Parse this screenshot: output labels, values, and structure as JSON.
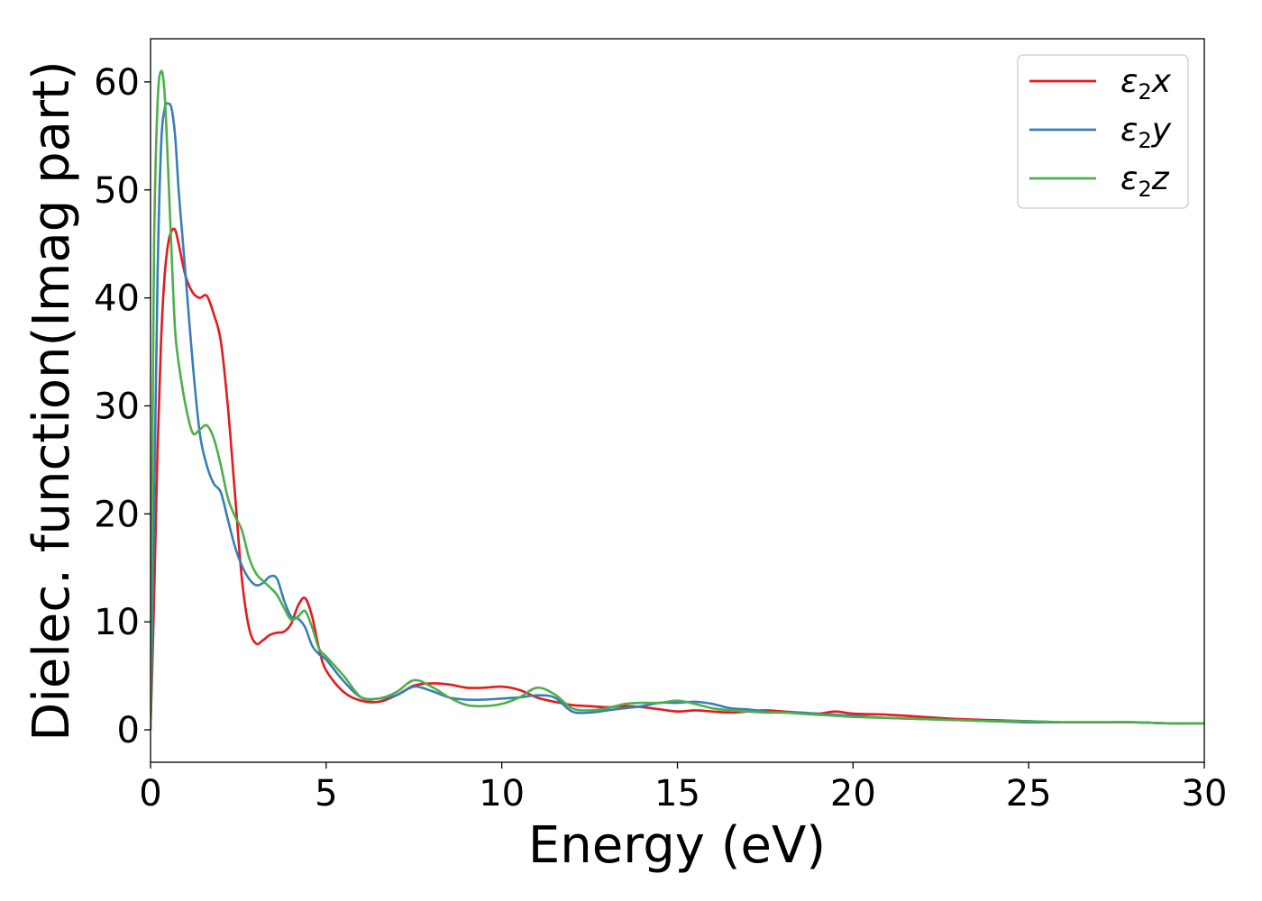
{
  "chart_data": {
    "type": "line",
    "xlabel": "Energy (eV)",
    "ylabel": "Dielec. function(Imag part)",
    "xlim": [
      0,
      30
    ],
    "ylim": [
      -3,
      64
    ],
    "xticks": [
      0,
      5,
      10,
      15,
      20,
      25,
      30
    ],
    "yticks": [
      0,
      10,
      20,
      30,
      40,
      50,
      60
    ],
    "grid": false,
    "legend_position": "top-right",
    "series": [
      {
        "name": "ε2x",
        "legend_base": "ε",
        "legend_sub": "2",
        "legend_var": "x",
        "color": "#e41a1c",
        "x": [
          0,
          0.1,
          0.2,
          0.3,
          0.4,
          0.5,
          0.6,
          0.7,
          0.8,
          1.0,
          1.2,
          1.4,
          1.6,
          1.8,
          2.0,
          2.2,
          2.4,
          2.6,
          2.8,
          3.0,
          3.2,
          3.4,
          3.6,
          3.8,
          4.0,
          4.2,
          4.4,
          4.6,
          4.8,
          5.0,
          5.5,
          6.0,
          6.5,
          7.0,
          7.5,
          8.0,
          8.5,
          9.0,
          9.5,
          10.0,
          10.5,
          11.0,
          11.5,
          12.0,
          12.5,
          13.0,
          13.5,
          14.0,
          14.5,
          15.0,
          15.5,
          16.0,
          16.5,
          17.0,
          17.5,
          18.0,
          18.5,
          19.0,
          19.5,
          20.0,
          21.0,
          22.0,
          23.0,
          24.0,
          25.0,
          26.0,
          27.0,
          28.0,
          29.0,
          30.0
        ],
        "values": [
          0,
          12,
          26,
          36,
          42,
          45,
          46.2,
          46.3,
          45,
          42,
          40.5,
          40,
          40.2,
          38.5,
          36,
          30,
          22,
          14,
          9.5,
          8,
          8.3,
          8.8,
          9.0,
          9.1,
          9.8,
          11.5,
          12.2,
          10.5,
          7.5,
          5.5,
          3.5,
          2.7,
          2.6,
          3.2,
          4.1,
          4.3,
          4.2,
          3.9,
          3.9,
          4.0,
          3.7,
          3.0,
          2.6,
          2.3,
          2.2,
          2.1,
          2.2,
          2.1,
          1.9,
          1.7,
          1.8,
          1.7,
          1.6,
          1.7,
          1.8,
          1.7,
          1.6,
          1.5,
          1.7,
          1.5,
          1.4,
          1.2,
          1.0,
          0.9,
          0.8,
          0.7,
          0.7,
          0.7,
          0.6,
          0.6
        ]
      },
      {
        "name": "ε2y",
        "legend_base": "ε",
        "legend_sub": "2",
        "legend_var": "y",
        "color": "#377eb8",
        "x": [
          0,
          0.1,
          0.2,
          0.3,
          0.4,
          0.5,
          0.6,
          0.7,
          0.8,
          0.9,
          1.0,
          1.2,
          1.4,
          1.6,
          1.8,
          2.0,
          2.2,
          2.4,
          2.6,
          2.8,
          3.0,
          3.2,
          3.4,
          3.6,
          3.8,
          4.0,
          4.2,
          4.4,
          4.6,
          4.8,
          5.0,
          5.5,
          6.0,
          6.5,
          7.0,
          7.5,
          8.0,
          8.5,
          9.0,
          9.5,
          10.0,
          10.5,
          11.0,
          11.5,
          12.0,
          12.5,
          13.0,
          13.5,
          14.0,
          14.5,
          15.0,
          15.5,
          16.0,
          16.5,
          17.0,
          17.5,
          18.0,
          18.5,
          19.0,
          19.5,
          20.0,
          21.0,
          22.0,
          23.0,
          24.0,
          25.0,
          26.0,
          27.0,
          28.0,
          29.0,
          30.0
        ],
        "values": [
          0,
          20,
          42,
          54,
          57.5,
          58,
          57.5,
          55,
          50,
          46,
          42,
          34,
          27.5,
          24.5,
          22.8,
          22.0,
          19.5,
          17,
          15.2,
          14.0,
          13.4,
          13.6,
          14.2,
          14.0,
          12.0,
          10.5,
          10.3,
          9.5,
          7.8,
          7.0,
          6.5,
          4.5,
          3.0,
          2.9,
          3.2,
          4.0,
          3.6,
          3.0,
          2.8,
          2.8,
          2.9,
          3.0,
          3.2,
          3.0,
          1.7,
          1.6,
          1.8,
          2.0,
          2.2,
          2.5,
          2.5,
          2.6,
          2.4,
          2.0,
          1.9,
          1.7,
          1.6,
          1.6,
          1.5,
          1.4,
          1.3,
          1.1,
          1.0,
          0.9,
          0.8,
          0.7,
          0.7,
          0.7,
          0.7,
          0.6,
          0.6
        ]
      },
      {
        "name": "ε2z",
        "legend_base": "ε",
        "legend_sub": "2",
        "legend_var": "z",
        "color": "#4daf4a",
        "x": [
          0,
          0.05,
          0.1,
          0.2,
          0.3,
          0.4,
          0.5,
          0.6,
          0.7,
          0.8,
          1.0,
          1.2,
          1.4,
          1.6,
          1.8,
          2.0,
          2.2,
          2.4,
          2.6,
          2.8,
          3.0,
          3.2,
          3.4,
          3.6,
          3.8,
          4.0,
          4.2,
          4.4,
          4.6,
          4.8,
          5.0,
          5.5,
          6.0,
          6.5,
          7.0,
          7.5,
          8.0,
          8.5,
          9.0,
          9.5,
          10.0,
          10.5,
          11.0,
          11.5,
          12.0,
          12.5,
          13.0,
          13.5,
          14.0,
          14.5,
          15.0,
          15.5,
          16.0,
          16.5,
          17.0,
          17.5,
          18.0,
          18.5,
          19.0,
          19.5,
          20.0,
          21.0,
          22.0,
          23.0,
          24.0,
          25.0,
          26.0,
          27.0,
          28.0,
          29.0,
          30.0
        ],
        "values": [
          0,
          25,
          45,
          58,
          61,
          59,
          52,
          44,
          37,
          34,
          30,
          27.5,
          27.8,
          28.2,
          27,
          24.5,
          21.5,
          19.8,
          18.5,
          16,
          14.5,
          13.8,
          13.2,
          12.5,
          11.3,
          10.2,
          10.5,
          11.0,
          9.5,
          7.5,
          6.8,
          5.0,
          3.0,
          2.9,
          3.5,
          4.6,
          4.0,
          3.0,
          2.3,
          2.2,
          2.4,
          3.0,
          3.9,
          3.3,
          2.0,
          1.8,
          2.0,
          2.4,
          2.5,
          2.5,
          2.7,
          2.4,
          2.0,
          1.8,
          1.7,
          1.6,
          1.6,
          1.5,
          1.4,
          1.3,
          1.2,
          1.1,
          1.0,
          0.9,
          0.8,
          0.8,
          0.7,
          0.7,
          0.7,
          0.6,
          0.6
        ]
      }
    ]
  }
}
